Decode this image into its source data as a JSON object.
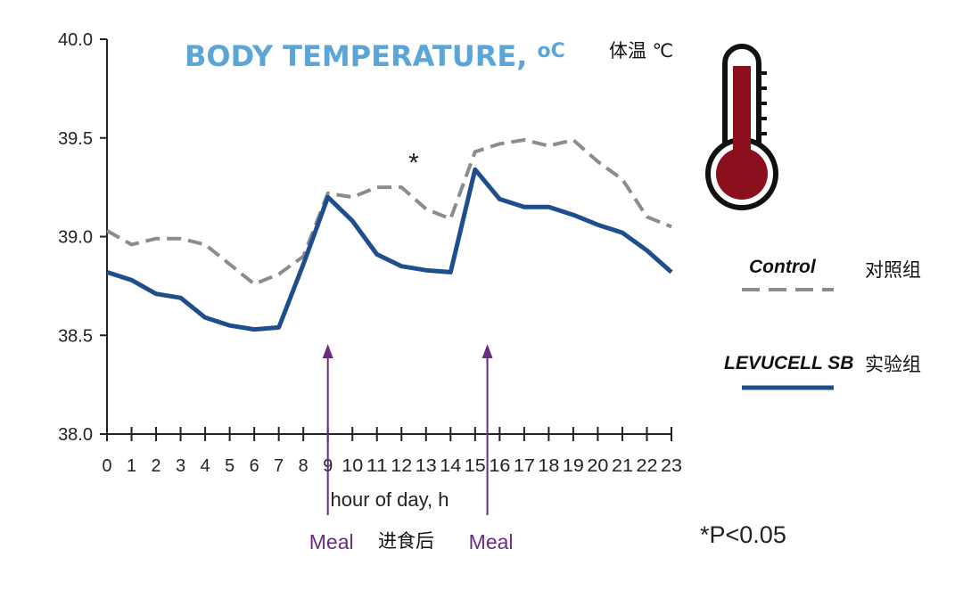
{
  "chart_data": {
    "type": "line",
    "title": "BODY TEMPERATURE, ",
    "title_unit": "oC",
    "title_cn": "体温 ℃",
    "xlabel": "hour of day, h",
    "ylabel": "",
    "x": [
      0,
      1,
      2,
      3,
      4,
      5,
      6,
      7,
      8,
      9,
      10,
      11,
      12,
      13,
      14,
      15,
      16,
      17,
      18,
      19,
      20,
      21,
      22,
      23
    ],
    "x_tick_labels": [
      "0",
      "1",
      "2",
      "3",
      "4",
      "5",
      "6",
      "7",
      "8",
      "9",
      "10",
      "11",
      "12",
      "13",
      "14",
      "15",
      "16",
      "17",
      "18",
      "19",
      "20",
      "21",
      "22",
      "23"
    ],
    "ylim": [
      38.0,
      40.0
    ],
    "y_ticks": [
      "38.0",
      "38.5",
      "39.0",
      "39.5",
      "40.0"
    ],
    "series": [
      {
        "name": "Control",
        "name_cn": "对照组",
        "color": "#8c8c8c",
        "style": "dashed",
        "values": [
          39.03,
          38.96,
          38.99,
          38.99,
          38.96,
          38.86,
          38.76,
          38.81,
          38.9,
          39.22,
          39.2,
          39.25,
          39.25,
          39.14,
          39.09,
          39.43,
          39.47,
          39.49,
          39.46,
          39.49,
          39.38,
          39.29,
          39.1,
          39.05
        ]
      },
      {
        "name": "LEVUCELL SB",
        "name_cn": "实验组",
        "color": "#1f4e8c",
        "style": "solid",
        "values": [
          38.82,
          38.78,
          38.71,
          38.69,
          38.59,
          38.55,
          38.53,
          38.54,
          38.86,
          39.2,
          39.08,
          38.91,
          38.85,
          38.83,
          38.82,
          39.34,
          39.19,
          39.15,
          39.15,
          39.11,
          39.06,
          39.02,
          38.93,
          38.82
        ]
      }
    ],
    "annotations": {
      "star": "*",
      "star_x": 12.5,
      "star_y": 39.33,
      "significance": "*P<0.05",
      "meal_label": "Meal",
      "meal_cn": "进食后",
      "meal_hours": [
        9,
        15.5
      ],
      "meal_color": "#6a2c82"
    },
    "grid": false,
    "legend_position": "right"
  },
  "icons": {
    "thermometer": "thermometer-icon",
    "thermometer_color": "#8b0f1c"
  }
}
